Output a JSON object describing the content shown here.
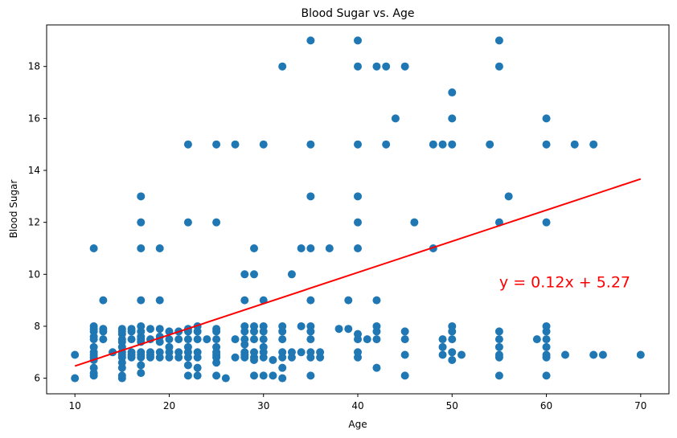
{
  "chart_data": {
    "type": "scatter",
    "title": "Blood Sugar vs. Age",
    "xlabel": "Age",
    "ylabel": "Blood Sugar",
    "xlim": [
      7,
      73
    ],
    "ylim": [
      5.4,
      19.6
    ],
    "xticks": [
      10,
      20,
      30,
      40,
      50,
      60,
      70
    ],
    "yticks": [
      6,
      8,
      10,
      12,
      14,
      16,
      18
    ],
    "grid": false,
    "point_color": "#1f77b4",
    "line_color": "#ff0000",
    "annotation": {
      "text": "y = 0.12x + 5.27",
      "x": 55,
      "y": 9.5,
      "color": "#ff0000"
    },
    "regression": {
      "slope": 0.12,
      "intercept": 5.27,
      "x_range": [
        10,
        70
      ]
    },
    "points": [
      [
        10,
        6.0
      ],
      [
        10,
        6.9
      ],
      [
        12,
        6.1
      ],
      [
        12,
        6.2
      ],
      [
        12,
        6.4
      ],
      [
        12,
        6.7
      ],
      [
        12,
        6.8
      ],
      [
        12,
        6.9
      ],
      [
        12,
        7.0
      ],
      [
        12,
        7.2
      ],
      [
        12,
        7.5
      ],
      [
        12,
        7.6
      ],
      [
        12,
        7.8
      ],
      [
        12,
        7.9
      ],
      [
        12,
        8.0
      ],
      [
        12,
        11.0
      ],
      [
        13,
        7.5
      ],
      [
        13,
        7.8
      ],
      [
        13,
        7.9
      ],
      [
        13,
        9.0
      ],
      [
        14,
        7.0
      ],
      [
        15,
        6.0
      ],
      [
        15,
        6.1
      ],
      [
        15,
        6.4
      ],
      [
        15,
        6.6
      ],
      [
        15,
        6.8
      ],
      [
        15,
        6.9
      ],
      [
        15,
        7.0
      ],
      [
        15,
        7.2
      ],
      [
        15,
        7.4
      ],
      [
        15,
        7.5
      ],
      [
        15,
        7.7
      ],
      [
        15,
        7.8
      ],
      [
        15,
        7.9
      ],
      [
        16,
        6.8
      ],
      [
        16,
        6.9
      ],
      [
        16,
        7.0
      ],
      [
        16,
        7.5
      ],
      [
        16,
        7.8
      ],
      [
        16,
        7.9
      ],
      [
        17,
        6.2
      ],
      [
        17,
        6.5
      ],
      [
        17,
        6.8
      ],
      [
        17,
        6.9
      ],
      [
        17,
        7.0
      ],
      [
        17,
        7.4
      ],
      [
        17,
        7.5
      ],
      [
        17,
        7.6
      ],
      [
        17,
        7.8
      ],
      [
        17,
        8.0
      ],
      [
        17,
        9.0
      ],
      [
        17,
        11.0
      ],
      [
        17,
        12.0
      ],
      [
        17,
        13.0
      ],
      [
        18,
        6.8
      ],
      [
        18,
        6.9
      ],
      [
        18,
        7.0
      ],
      [
        18,
        7.5
      ],
      [
        18,
        7.9
      ],
      [
        19,
        6.8
      ],
      [
        19,
        7.0
      ],
      [
        19,
        7.4
      ],
      [
        19,
        7.6
      ],
      [
        19,
        7.9
      ],
      [
        19,
        9.0
      ],
      [
        19,
        11.0
      ],
      [
        20,
        6.8
      ],
      [
        20,
        7.0
      ],
      [
        20,
        7.2
      ],
      [
        20,
        7.5
      ],
      [
        20,
        7.8
      ],
      [
        21,
        6.8
      ],
      [
        21,
        7.0
      ],
      [
        21,
        7.5
      ],
      [
        21,
        7.8
      ],
      [
        22,
        6.1
      ],
      [
        22,
        6.5
      ],
      [
        22,
        6.8
      ],
      [
        22,
        7.0
      ],
      [
        22,
        7.2
      ],
      [
        22,
        7.5
      ],
      [
        22,
        7.8
      ],
      [
        22,
        7.9
      ],
      [
        22,
        12.0
      ],
      [
        22,
        15.0
      ],
      [
        23,
        6.1
      ],
      [
        23,
        6.4
      ],
      [
        23,
        6.8
      ],
      [
        23,
        7.0
      ],
      [
        23,
        7.5
      ],
      [
        23,
        7.8
      ],
      [
        23,
        8.0
      ],
      [
        24,
        7.5
      ],
      [
        25,
        6.1
      ],
      [
        25,
        6.6
      ],
      [
        25,
        6.8
      ],
      [
        25,
        6.9
      ],
      [
        25,
        7.0
      ],
      [
        25,
        7.2
      ],
      [
        25,
        7.5
      ],
      [
        25,
        7.8
      ],
      [
        25,
        7.9
      ],
      [
        25,
        12.0
      ],
      [
        25,
        15.0
      ],
      [
        26,
        6.0
      ],
      [
        27,
        6.8
      ],
      [
        27,
        7.5
      ],
      [
        27,
        15.0
      ],
      [
        28,
        6.8
      ],
      [
        28,
        6.9
      ],
      [
        28,
        7.0
      ],
      [
        28,
        7.3
      ],
      [
        28,
        7.5
      ],
      [
        28,
        7.8
      ],
      [
        28,
        8.0
      ],
      [
        28,
        9.0
      ],
      [
        28,
        10.0
      ],
      [
        29,
        6.1
      ],
      [
        29,
        6.7
      ],
      [
        29,
        6.8
      ],
      [
        29,
        7.0
      ],
      [
        29,
        7.5
      ],
      [
        29,
        7.8
      ],
      [
        29,
        8.0
      ],
      [
        29,
        10.0
      ],
      [
        29,
        11.0
      ],
      [
        30,
        6.1
      ],
      [
        30,
        6.8
      ],
      [
        30,
        7.0
      ],
      [
        30,
        7.2
      ],
      [
        30,
        7.5
      ],
      [
        30,
        7.8
      ],
      [
        30,
        8.0
      ],
      [
        30,
        9.0
      ],
      [
        30,
        15.0
      ],
      [
        31,
        6.1
      ],
      [
        31,
        6.7
      ],
      [
        32,
        6.0
      ],
      [
        32,
        6.4
      ],
      [
        32,
        6.8
      ],
      [
        32,
        7.0
      ],
      [
        32,
        7.5
      ],
      [
        32,
        7.8
      ],
      [
        32,
        8.0
      ],
      [
        32,
        18.0
      ],
      [
        33,
        6.8
      ],
      [
        33,
        7.0
      ],
      [
        33,
        10.0
      ],
      [
        34,
        7.0
      ],
      [
        34,
        8.0
      ],
      [
        34,
        11.0
      ],
      [
        35,
        6.1
      ],
      [
        35,
        6.8
      ],
      [
        35,
        7.0
      ],
      [
        35,
        7.5
      ],
      [
        35,
        7.8
      ],
      [
        35,
        8.0
      ],
      [
        35,
        9.0
      ],
      [
        35,
        11.0
      ],
      [
        35,
        13.0
      ],
      [
        35,
        15.0
      ],
      [
        35,
        19.0
      ],
      [
        36,
        6.8
      ],
      [
        36,
        7.0
      ],
      [
        37,
        11.0
      ],
      [
        38,
        7.9
      ],
      [
        39,
        7.9
      ],
      [
        39,
        9.0
      ],
      [
        40,
        6.8
      ],
      [
        40,
        7.0
      ],
      [
        40,
        7.5
      ],
      [
        40,
        7.7
      ],
      [
        40,
        11.0
      ],
      [
        40,
        12.0
      ],
      [
        40,
        13.0
      ],
      [
        40,
        15.0
      ],
      [
        40,
        18.0
      ],
      [
        40,
        19.0
      ],
      [
        41,
        7.5
      ],
      [
        42,
        6.4
      ],
      [
        42,
        7.5
      ],
      [
        42,
        7.8
      ],
      [
        42,
        8.0
      ],
      [
        42,
        9.0
      ],
      [
        42,
        18.0
      ],
      [
        43,
        15.0
      ],
      [
        43,
        18.0
      ],
      [
        44,
        16.0
      ],
      [
        45,
        6.1
      ],
      [
        45,
        6.9
      ],
      [
        45,
        7.5
      ],
      [
        45,
        7.8
      ],
      [
        45,
        18.0
      ],
      [
        46,
        12.0
      ],
      [
        48,
        11.0
      ],
      [
        48,
        15.0
      ],
      [
        49,
        6.9
      ],
      [
        49,
        7.2
      ],
      [
        49,
        7.5
      ],
      [
        49,
        15.0
      ],
      [
        50,
        6.7
      ],
      [
        50,
        7.0
      ],
      [
        50,
        7.5
      ],
      [
        50,
        7.8
      ],
      [
        50,
        8.0
      ],
      [
        50,
        15.0
      ],
      [
        50,
        16.0
      ],
      [
        50,
        17.0
      ],
      [
        51,
        6.9
      ],
      [
        54,
        15.0
      ],
      [
        55,
        6.1
      ],
      [
        55,
        6.8
      ],
      [
        55,
        6.9
      ],
      [
        55,
        7.2
      ],
      [
        55,
        7.5
      ],
      [
        55,
        7.8
      ],
      [
        55,
        12.0
      ],
      [
        55,
        18.0
      ],
      [
        55,
        19.0
      ],
      [
        56,
        13.0
      ],
      [
        59,
        7.5
      ],
      [
        60,
        6.1
      ],
      [
        60,
        6.8
      ],
      [
        60,
        6.9
      ],
      [
        60,
        7.2
      ],
      [
        60,
        7.5
      ],
      [
        60,
        7.8
      ],
      [
        60,
        8.0
      ],
      [
        60,
        12.0
      ],
      [
        60,
        15.0
      ],
      [
        60,
        16.0
      ],
      [
        62,
        6.9
      ],
      [
        63,
        15.0
      ],
      [
        65,
        6.9
      ],
      [
        65,
        15.0
      ],
      [
        66,
        6.9
      ],
      [
        70,
        6.9
      ]
    ]
  }
}
